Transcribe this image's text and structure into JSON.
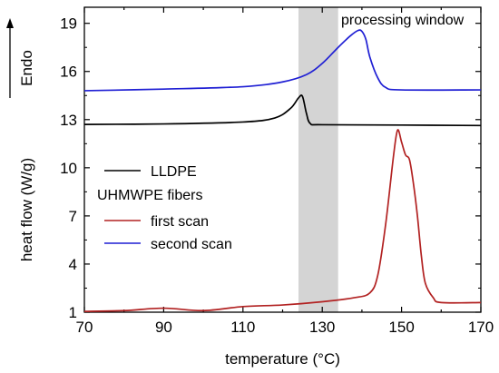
{
  "chart_data": {
    "type": "line",
    "xlabel": "temperature (°C)",
    "ylabel": "heat flow (W/g)",
    "endo_label": "Endo",
    "xlim": [
      70,
      170
    ],
    "ylim": [
      1,
      20
    ],
    "x_ticks": [
      70,
      90,
      110,
      130,
      150,
      170
    ],
    "y_ticks": [
      1,
      4,
      7,
      10,
      13,
      16,
      19
    ],
    "grid": false,
    "legend_position": "center-left",
    "legend_group_title": "UHMWPE fibers",
    "shaded_region": {
      "x_range": [
        124,
        134
      ],
      "label": "processing window",
      "color": "#d4d4d4"
    },
    "series": [
      {
        "name": "LLDPE",
        "color": "#000000",
        "points": [
          [
            70,
            12.7
          ],
          [
            90,
            12.73
          ],
          [
            110,
            12.85
          ],
          [
            118,
            13.1
          ],
          [
            122,
            13.7
          ],
          [
            124,
            14.35
          ],
          [
            125,
            14.45
          ],
          [
            126,
            13.4
          ],
          [
            127,
            12.75
          ],
          [
            130,
            12.68
          ],
          [
            150,
            12.66
          ],
          [
            170,
            12.63
          ]
        ]
      },
      {
        "name": "first scan",
        "color": "#b22222",
        "points": [
          [
            70,
            1.05
          ],
          [
            80,
            1.1
          ],
          [
            90,
            1.25
          ],
          [
            100,
            1.1
          ],
          [
            110,
            1.35
          ],
          [
            120,
            1.45
          ],
          [
            130,
            1.65
          ],
          [
            138,
            1.9
          ],
          [
            142,
            2.2
          ],
          [
            144,
            3.3
          ],
          [
            146,
            6.5
          ],
          [
            148,
            10.8
          ],
          [
            149,
            12.35
          ],
          [
            150,
            11.6
          ],
          [
            151,
            10.8
          ],
          [
            152,
            10.5
          ],
          [
            153,
            9.0
          ],
          [
            154,
            7.0
          ],
          [
            155,
            4.5
          ],
          [
            156,
            2.8
          ],
          [
            158,
            1.9
          ],
          [
            160,
            1.6
          ],
          [
            170,
            1.6
          ]
        ]
      },
      {
        "name": "second scan",
        "color": "#1f1fd4",
        "points": [
          [
            70,
            14.8
          ],
          [
            90,
            14.9
          ],
          [
            110,
            15.05
          ],
          [
            120,
            15.35
          ],
          [
            126,
            15.8
          ],
          [
            130,
            16.5
          ],
          [
            134,
            17.5
          ],
          [
            137,
            18.2
          ],
          [
            139,
            18.55
          ],
          [
            140,
            18.5
          ],
          [
            141,
            18.0
          ],
          [
            142,
            16.9
          ],
          [
            144,
            15.6
          ],
          [
            146,
            15.0
          ],
          [
            150,
            14.85
          ],
          [
            170,
            14.85
          ]
        ]
      }
    ]
  }
}
